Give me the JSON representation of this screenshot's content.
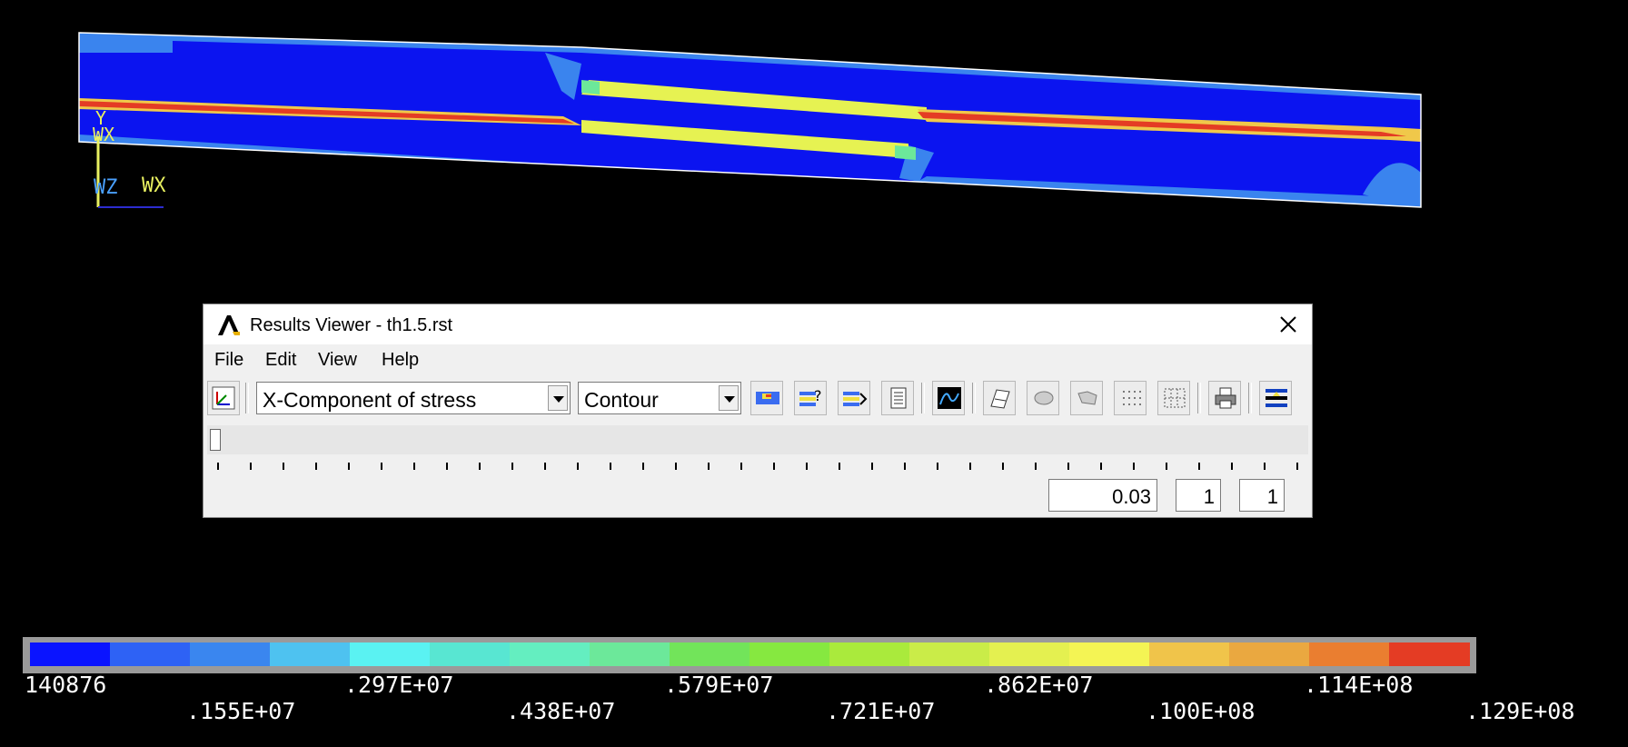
{
  "window": {
    "title": "Results Viewer -  th1.5.rst",
    "close_label": "✕"
  },
  "menu": [
    "File",
    "Edit",
    "View",
    "Help"
  ],
  "toolbar": {
    "result_item": "X-Component of stress",
    "display_type": "Contour",
    "icons": [
      "select-result-icon",
      "contour-plot-icon",
      "query-result-icon",
      "vector-plot-icon",
      "list-result-icon",
      "graph-icon",
      "animate-icon",
      "element-display-icon",
      "node-display-icon",
      "node-dots-icon",
      "element-grid-icon",
      "print-icon",
      "options-icon"
    ]
  },
  "time_controls": {
    "time_value": "0.03",
    "load_step": "1",
    "substep": "1"
  },
  "triad": {
    "top_label": "Y",
    "top_label2": "WX",
    "bottom_z": "WZ",
    "bottom_x": "WX"
  },
  "legend": {
    "colors": [
      "#0a14ff",
      "#2e62f5",
      "#3a86ef",
      "#4ec2f0",
      "#5af2f2",
      "#58e6d2",
      "#64eec0",
      "#6ce89a",
      "#72e45a",
      "#86e840",
      "#aaea3c",
      "#caec48",
      "#e4f050",
      "#f4f454",
      "#f0c44a",
      "#eaa840",
      "#ea7e30",
      "#e43c24"
    ],
    "labels_top": [
      "140876",
      ".297E+07",
      ".579E+07",
      ".862E+07",
      ".114E+08"
    ],
    "labels_bottom": [
      ".155E+07",
      ".438E+07",
      ".721E+07",
      ".100E+08",
      ".129E+08"
    ]
  }
}
